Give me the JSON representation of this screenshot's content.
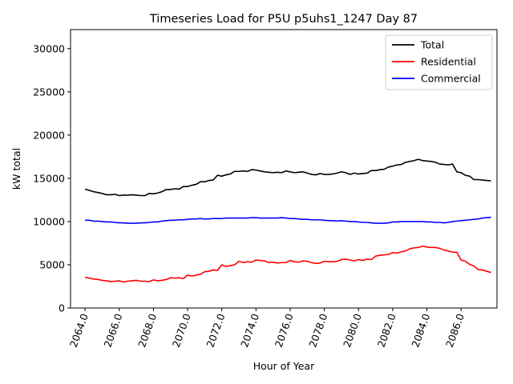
{
  "chart_data": {
    "type": "line",
    "title": "Timeseries Load for P5U p5uhs1_1247  Day 87",
    "xlabel": "Hour of Year",
    "ylabel": "kW total",
    "xlim": [
      2063.15,
      2088.1
    ],
    "ylim": [
      0,
      32200
    ],
    "xticks": [
      2064,
      2066,
      2068,
      2070,
      2072,
      2074,
      2076,
      2078,
      2080,
      2082,
      2084,
      2086
    ],
    "xtick_labels": [
      "2064.0",
      "2066.0",
      "2068.0",
      "2070.0",
      "2072.0",
      "2074.0",
      "2076.0",
      "2078.0",
      "2080.0",
      "2082.0",
      "2084.0",
      "2086.0"
    ],
    "yticks": [
      0,
      5000,
      10000,
      15000,
      20000,
      25000,
      30000
    ],
    "ytick_labels": [
      "0",
      "5000",
      "10000",
      "15000",
      "20000",
      "25000",
      "30000"
    ],
    "legend_position": "top-right",
    "x": [
      2064.0,
      2064.25,
      2064.5,
      2064.75,
      2065.0,
      2065.25,
      2065.5,
      2065.75,
      2066.0,
      2066.25,
      2066.5,
      2066.75,
      2067.0,
      2067.25,
      2067.5,
      2067.75,
      2068.0,
      2068.25,
      2068.5,
      2068.75,
      2069.0,
      2069.25,
      2069.5,
      2069.75,
      2070.0,
      2070.25,
      2070.5,
      2070.75,
      2071.0,
      2071.25,
      2071.5,
      2071.75,
      2072.0,
      2072.25,
      2072.5,
      2072.75,
      2073.0,
      2073.25,
      2073.5,
      2073.75,
      2074.0,
      2074.25,
      2074.5,
      2074.75,
      2075.0,
      2075.25,
      2075.5,
      2075.75,
      2076.0,
      2076.25,
      2076.5,
      2076.75,
      2077.0,
      2077.25,
      2077.5,
      2077.75,
      2078.0,
      2078.25,
      2078.5,
      2078.75,
      2079.0,
      2079.25,
      2079.5,
      2079.75,
      2080.0,
      2080.25,
      2080.5,
      2080.75,
      2081.0,
      2081.25,
      2081.5,
      2081.75,
      2082.0,
      2082.25,
      2082.5,
      2082.75,
      2083.0,
      2083.25,
      2083.5,
      2083.75,
      2084.0,
      2084.25,
      2084.5,
      2084.75,
      2085.0,
      2085.25,
      2085.5,
      2085.75,
      2086.0,
      2086.25,
      2086.5,
      2086.75,
      2087.0,
      2087.25,
      2087.5,
      2087.75
    ],
    "series": [
      {
        "name": "Total",
        "color": "#000000",
        "values": [
          13750,
          13600,
          13450,
          13350,
          13250,
          13100,
          13100,
          13150,
          13000,
          13050,
          13050,
          13100,
          13050,
          13000,
          13000,
          13250,
          13200,
          13300,
          13450,
          13700,
          13700,
          13800,
          13750,
          14050,
          14050,
          14200,
          14300,
          14600,
          14600,
          14750,
          14800,
          15350,
          15250,
          15400,
          15500,
          15800,
          15800,
          15850,
          15800,
          16000,
          15950,
          15850,
          15750,
          15700,
          15650,
          15700,
          15650,
          15850,
          15750,
          15650,
          15700,
          15750,
          15600,
          15450,
          15400,
          15550,
          15450,
          15450,
          15500,
          15600,
          15750,
          15650,
          15450,
          15600,
          15500,
          15550,
          15600,
          15900,
          15900,
          16000,
          16050,
          16300,
          16400,
          16550,
          16600,
          16850,
          16950,
          17050,
          17200,
          17050,
          17000,
          16950,
          16850,
          16650,
          16600,
          16550,
          16650,
          15750,
          15650,
          15350,
          15250,
          14850,
          14850,
          14800,
          14750,
          14700
        ]
      },
      {
        "name": "Residential",
        "color": "#ff0000",
        "values": [
          3550,
          3450,
          3350,
          3300,
          3200,
          3150,
          3050,
          3100,
          3150,
          3000,
          3100,
          3150,
          3200,
          3100,
          3100,
          3050,
          3250,
          3150,
          3200,
          3300,
          3500,
          3450,
          3500,
          3400,
          3800,
          3700,
          3800,
          3900,
          4200,
          4250,
          4400,
          4350,
          5000,
          4800,
          4900,
          5000,
          5400,
          5250,
          5350,
          5300,
          5550,
          5500,
          5450,
          5250,
          5300,
          5200,
          5250,
          5250,
          5500,
          5350,
          5300,
          5450,
          5400,
          5250,
          5150,
          5200,
          5400,
          5350,
          5350,
          5400,
          5600,
          5650,
          5550,
          5450,
          5600,
          5500,
          5650,
          5600,
          6000,
          6100,
          6150,
          6200,
          6400,
          6350,
          6500,
          6600,
          6850,
          6950,
          7000,
          7150,
          7050,
          7000,
          7000,
          6900,
          6700,
          6600,
          6450,
          6450,
          5550,
          5400,
          5050,
          4850,
          4450,
          4400,
          4250,
          4100
        ]
      },
      {
        "name": "Commercial",
        "color": "#0000ff",
        "values": [
          10150,
          10150,
          10050,
          10050,
          10000,
          9950,
          9950,
          9900,
          9850,
          9850,
          9800,
          9800,
          9800,
          9850,
          9850,
          9900,
          9950,
          9950,
          10050,
          10100,
          10150,
          10150,
          10200,
          10200,
          10250,
          10300,
          10300,
          10350,
          10300,
          10300,
          10350,
          10350,
          10350,
          10400,
          10400,
          10400,
          10400,
          10400,
          10400,
          10450,
          10450,
          10400,
          10400,
          10400,
          10400,
          10400,
          10450,
          10400,
          10350,
          10350,
          10300,
          10250,
          10250,
          10200,
          10200,
          10200,
          10150,
          10100,
          10100,
          10050,
          10100,
          10050,
          10000,
          10000,
          9950,
          9900,
          9900,
          9850,
          9800,
          9800,
          9800,
          9850,
          9950,
          9950,
          10000,
          10000,
          10000,
          10000,
          10000,
          10000,
          9950,
          9950,
          9900,
          9900,
          9850,
          9900,
          10000,
          10050,
          10100,
          10150,
          10200,
          10250,
          10300,
          10400,
          10450,
          10500
        ]
      }
    ]
  }
}
